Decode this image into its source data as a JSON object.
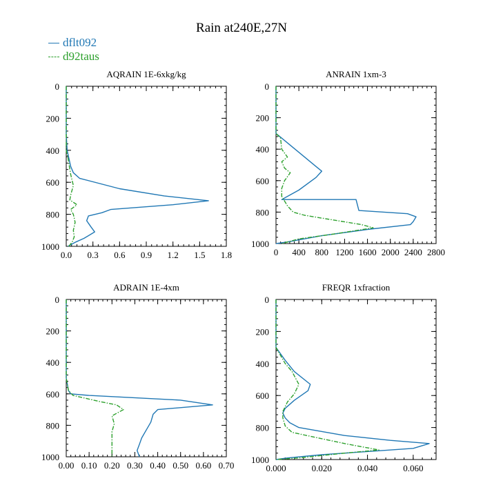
{
  "page": {
    "title": "Rain at240E,27N"
  },
  "colors": {
    "series1": "#1f77b4",
    "series2": "#2ca02c",
    "axis": "#000000"
  },
  "legend": {
    "items": [
      {
        "name": "dflt092",
        "color": "#1f77b4",
        "style": "solid"
      },
      {
        "name": "d92taus",
        "color": "#2ca02c",
        "style": "dashed"
      }
    ]
  },
  "chart_data": [
    {
      "type": "line",
      "title": "AQRAIN  1E-6xkg/kg",
      "xlim": [
        0,
        1.8
      ],
      "ylim": [
        0,
        1000
      ],
      "y_inverted": true,
      "xticks": [
        0,
        0.3,
        0.6,
        0.9,
        1.2,
        1.5,
        1.8
      ],
      "xtick_labels": [
        "0.0",
        "0.3",
        "0.6",
        "0.9",
        "1.2",
        "1.5",
        "1.8"
      ],
      "yticks": [
        0,
        200,
        400,
        600,
        800,
        1000
      ],
      "ytick_labels": [
        "0",
        "200",
        "400",
        "600",
        "800",
        "1000"
      ],
      "series": [
        {
          "name": "dflt092",
          "style": "solid",
          "points": [
            [
              0,
              0
            ],
            [
              0,
              300
            ],
            [
              0.01,
              400
            ],
            [
              0.05,
              500
            ],
            [
              0.08,
              540
            ],
            [
              0.15,
              575
            ],
            [
              0.6,
              640
            ],
            [
              1.1,
              685
            ],
            [
              1.6,
              715
            ],
            [
              1.2,
              740
            ],
            [
              0.5,
              770
            ],
            [
              0.4,
              790
            ],
            [
              0.25,
              810
            ],
            [
              0.23,
              840
            ],
            [
              0.28,
              880
            ],
            [
              0.32,
              910
            ],
            [
              0.2,
              950
            ],
            [
              0.1,
              975
            ],
            [
              0.05,
              990
            ],
            [
              0.02,
              1000
            ]
          ]
        },
        {
          "name": "d92taus",
          "style": "dashed",
          "points": [
            [
              0,
              0
            ],
            [
              0,
              400
            ],
            [
              0.02,
              450
            ],
            [
              0.05,
              550
            ],
            [
              0.08,
              620
            ],
            [
              0.05,
              680
            ],
            [
              0.04,
              710
            ],
            [
              0.12,
              740
            ],
            [
              0.05,
              770
            ],
            [
              0.08,
              800
            ],
            [
              0.1,
              850
            ],
            [
              0.08,
              900
            ],
            [
              0.09,
              940
            ],
            [
              0.07,
              970
            ],
            [
              0.03,
              1000
            ]
          ]
        }
      ]
    },
    {
      "type": "line",
      "title": "ANRAIN  1xm-3",
      "xlim": [
        0,
        2800
      ],
      "ylim": [
        0,
        1000
      ],
      "y_inverted": true,
      "xticks": [
        0,
        400,
        800,
        1200,
        1600,
        2000,
        2400,
        2800
      ],
      "xtick_labels": [
        "0",
        "400",
        "800",
        "1200",
        "1600",
        "2000",
        "2400",
        "2800"
      ],
      "yticks": [
        0,
        200,
        400,
        600,
        800,
        1000
      ],
      "ytick_labels": [
        "0",
        "200",
        "400",
        "600",
        "800",
        "1000"
      ],
      "series": [
        {
          "name": "dflt092",
          "style": "solid",
          "points": [
            [
              0,
              0
            ],
            [
              0,
              300
            ],
            [
              100,
              330
            ],
            [
              300,
              390
            ],
            [
              500,
              450
            ],
            [
              700,
              510
            ],
            [
              800,
              540
            ],
            [
              700,
              580
            ],
            [
              400,
              660
            ],
            [
              200,
              700
            ],
            [
              100,
              720
            ],
            [
              1400,
              720
            ],
            [
              1450,
              790
            ],
            [
              2300,
              810
            ],
            [
              2450,
              830
            ],
            [
              2400,
              860
            ],
            [
              2350,
              880
            ],
            [
              1600,
              910
            ],
            [
              800,
              950
            ],
            [
              200,
              990
            ],
            [
              0,
              1000
            ]
          ]
        },
        {
          "name": "d92taus",
          "style": "dashed",
          "points": [
            [
              0,
              0
            ],
            [
              0,
              300
            ],
            [
              80,
              330
            ],
            [
              100,
              400
            ],
            [
              200,
              450
            ],
            [
              100,
              480
            ],
            [
              150,
              520
            ],
            [
              250,
              550
            ],
            [
              150,
              600
            ],
            [
              100,
              650
            ],
            [
              100,
              700
            ],
            [
              150,
              730
            ],
            [
              200,
              760
            ],
            [
              300,
              800
            ],
            [
              500,
              820
            ],
            [
              1000,
              850
            ],
            [
              1500,
              880
            ],
            [
              1700,
              900
            ],
            [
              1000,
              940
            ],
            [
              400,
              970
            ],
            [
              100,
              1000
            ]
          ]
        }
      ]
    },
    {
      "type": "line",
      "title": "ADRAIN  1E-4xm",
      "xlim": [
        0,
        0.7
      ],
      "ylim": [
        0,
        1000
      ],
      "y_inverted": true,
      "xticks": [
        0,
        0.1,
        0.2,
        0.3,
        0.4,
        0.5,
        0.6,
        0.7
      ],
      "xtick_labels": [
        "0.00",
        "0.10",
        "0.20",
        "0.30",
        "0.40",
        "0.50",
        "0.60",
        "0.70"
      ],
      "yticks": [
        0,
        200,
        400,
        600,
        800,
        1000
      ],
      "ytick_labels": [
        "0",
        "200",
        "400",
        "600",
        "800",
        "1000"
      ],
      "series": [
        {
          "name": "dflt092",
          "style": "solid",
          "points": [
            [
              0,
              0
            ],
            [
              0,
              500
            ],
            [
              0.01,
              580
            ],
            [
              0.02,
              600
            ],
            [
              0.1,
              610
            ],
            [
              0.5,
              640
            ],
            [
              0.64,
              670
            ],
            [
              0.4,
              700
            ],
            [
              0.38,
              730
            ],
            [
              0.37,
              780
            ],
            [
              0.35,
              830
            ],
            [
              0.33,
              880
            ],
            [
              0.32,
              920
            ],
            [
              0.31,
              960
            ],
            [
              0.32,
              1000
            ]
          ]
        },
        {
          "name": "d92taus",
          "style": "dashed",
          "points": [
            [
              0,
              0
            ],
            [
              0,
              500
            ],
            [
              0.01,
              580
            ],
            [
              0.03,
              610
            ],
            [
              0.15,
              650
            ],
            [
              0.22,
              670
            ],
            [
              0.25,
              700
            ],
            [
              0.2,
              740
            ],
            [
              0.21,
              790
            ],
            [
              0.2,
              840
            ],
            [
              0.2,
              900
            ],
            [
              0.2,
              960
            ],
            [
              0.2,
              1000
            ]
          ]
        }
      ]
    },
    {
      "type": "line",
      "title": "FREQR  1xfraction",
      "xlim": [
        0,
        0.07
      ],
      "ylim": [
        0,
        1000
      ],
      "y_inverted": true,
      "xticks": [
        0,
        0.02,
        0.04,
        0.06
      ],
      "xtick_labels": [
        "0.000",
        "0.020",
        "0.040",
        "0.060"
      ],
      "yticks": [
        0,
        200,
        400,
        600,
        800,
        1000
      ],
      "ytick_labels": [
        "0",
        "200",
        "400",
        "600",
        "800",
        "1000"
      ],
      "series": [
        {
          "name": "dflt092",
          "style": "solid",
          "points": [
            [
              0,
              0
            ],
            [
              0,
              300
            ],
            [
              0.001,
              320
            ],
            [
              0.004,
              380
            ],
            [
              0.008,
              450
            ],
            [
              0.015,
              530
            ],
            [
              0.014,
              570
            ],
            [
              0.008,
              630
            ],
            [
              0.004,
              680
            ],
            [
              0.003,
              710
            ],
            [
              0.004,
              740
            ],
            [
              0.006,
              770
            ],
            [
              0.01,
              800
            ],
            [
              0.03,
              850
            ],
            [
              0.05,
              880
            ],
            [
              0.067,
              900
            ],
            [
              0.06,
              930
            ],
            [
              0.04,
              950
            ],
            [
              0.02,
              970
            ],
            [
              0.005,
              990
            ],
            [
              0,
              1000
            ]
          ]
        },
        {
          "name": "d92taus",
          "style": "dashed",
          "points": [
            [
              0,
              0
            ],
            [
              0,
              300
            ],
            [
              0.002,
              350
            ],
            [
              0.004,
              400
            ],
            [
              0.007,
              450
            ],
            [
              0.01,
              530
            ],
            [
              0.008,
              590
            ],
            [
              0.005,
              640
            ],
            [
              0.003,
              700
            ],
            [
              0.003,
              740
            ],
            [
              0.004,
              790
            ],
            [
              0.007,
              830
            ],
            [
              0.02,
              870
            ],
            [
              0.03,
              900
            ],
            [
              0.045,
              940
            ],
            [
              0.03,
              960
            ],
            [
              0.01,
              990
            ],
            [
              0,
              1000
            ]
          ]
        }
      ]
    }
  ]
}
